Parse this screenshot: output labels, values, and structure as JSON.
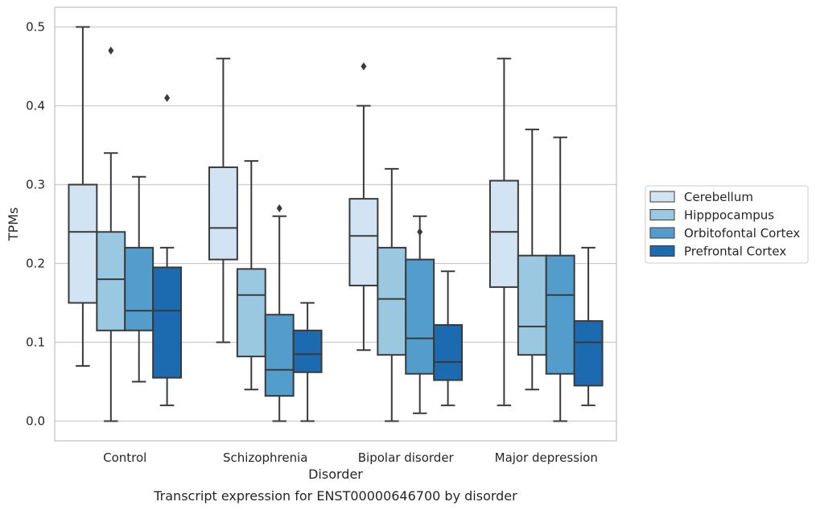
{
  "chart_data": {
    "type": "box",
    "categories": [
      "Control",
      "Schizophrenia",
      "Bipolar disorder",
      "Major depression"
    ],
    "xlabel": "Disorder",
    "ylabel": "TPMs",
    "caption": "Transcript expression for ENST00000646700 by disorder",
    "ylim": [
      -0.025,
      0.525
    ],
    "yticks": [
      "0.0",
      "0.1",
      "0.2",
      "0.3",
      "0.4",
      "0.5"
    ],
    "ytick_values": [
      0.0,
      0.1,
      0.2,
      0.3,
      0.4,
      0.5
    ],
    "grid": true,
    "legend_position": "right",
    "series": [
      {
        "name": "Cerebellum",
        "color": "#d2e3f3",
        "boxes": [
          {
            "whisker_low": 0.07,
            "q1": 0.15,
            "median": 0.24,
            "q3": 0.3,
            "whisker_high": 0.5,
            "outliers": []
          },
          {
            "whisker_low": 0.1,
            "q1": 0.205,
            "median": 0.245,
            "q3": 0.322,
            "whisker_high": 0.46,
            "outliers": []
          },
          {
            "whisker_low": 0.09,
            "q1": 0.172,
            "median": 0.235,
            "q3": 0.282,
            "whisker_high": 0.4,
            "outliers": [
              0.45
            ]
          },
          {
            "whisker_low": 0.02,
            "q1": 0.17,
            "median": 0.24,
            "q3": 0.305,
            "whisker_high": 0.46,
            "outliers": []
          }
        ]
      },
      {
        "name": "Hipppocampus",
        "color": "#9ac8e0",
        "boxes": [
          {
            "whisker_low": 0.0,
            "q1": 0.115,
            "median": 0.18,
            "q3": 0.24,
            "whisker_high": 0.34,
            "outliers": [
              0.47
            ]
          },
          {
            "whisker_low": 0.04,
            "q1": 0.082,
            "median": 0.16,
            "q3": 0.193,
            "whisker_high": 0.33,
            "outliers": []
          },
          {
            "whisker_low": 0.0,
            "q1": 0.084,
            "median": 0.155,
            "q3": 0.22,
            "whisker_high": 0.32,
            "outliers": []
          },
          {
            "whisker_low": 0.04,
            "q1": 0.084,
            "median": 0.12,
            "q3": 0.21,
            "whisker_high": 0.37,
            "outliers": []
          }
        ]
      },
      {
        "name": "Orbitofontal Cortex",
        "color": "#529dcc",
        "boxes": [
          {
            "whisker_low": 0.05,
            "q1": 0.115,
            "median": 0.14,
            "q3": 0.22,
            "whisker_high": 0.31,
            "outliers": []
          },
          {
            "whisker_low": 0.0,
            "q1": 0.032,
            "median": 0.065,
            "q3": 0.135,
            "whisker_high": 0.26,
            "outliers": [
              0.27
            ]
          },
          {
            "whisker_low": 0.01,
            "q1": 0.06,
            "median": 0.105,
            "q3": 0.205,
            "whisker_high": 0.26,
            "outliers": [
              0.24
            ]
          },
          {
            "whisker_low": 0.0,
            "q1": 0.06,
            "median": 0.16,
            "q3": 0.21,
            "whisker_high": 0.36,
            "outliers": []
          }
        ]
      },
      {
        "name": "Prefrontal Cortex",
        "color": "#1c6aaf",
        "boxes": [
          {
            "whisker_low": 0.02,
            "q1": 0.055,
            "median": 0.14,
            "q3": 0.195,
            "whisker_high": 0.22,
            "outliers": [
              0.41
            ]
          },
          {
            "whisker_low": 0.0,
            "q1": 0.062,
            "median": 0.085,
            "q3": 0.115,
            "whisker_high": 0.15,
            "outliers": []
          },
          {
            "whisker_low": 0.02,
            "q1": 0.052,
            "median": 0.075,
            "q3": 0.122,
            "whisker_high": 0.19,
            "outliers": []
          },
          {
            "whisker_low": 0.02,
            "q1": 0.045,
            "median": 0.1,
            "q3": 0.127,
            "whisker_high": 0.22,
            "outliers": []
          }
        ]
      }
    ]
  }
}
